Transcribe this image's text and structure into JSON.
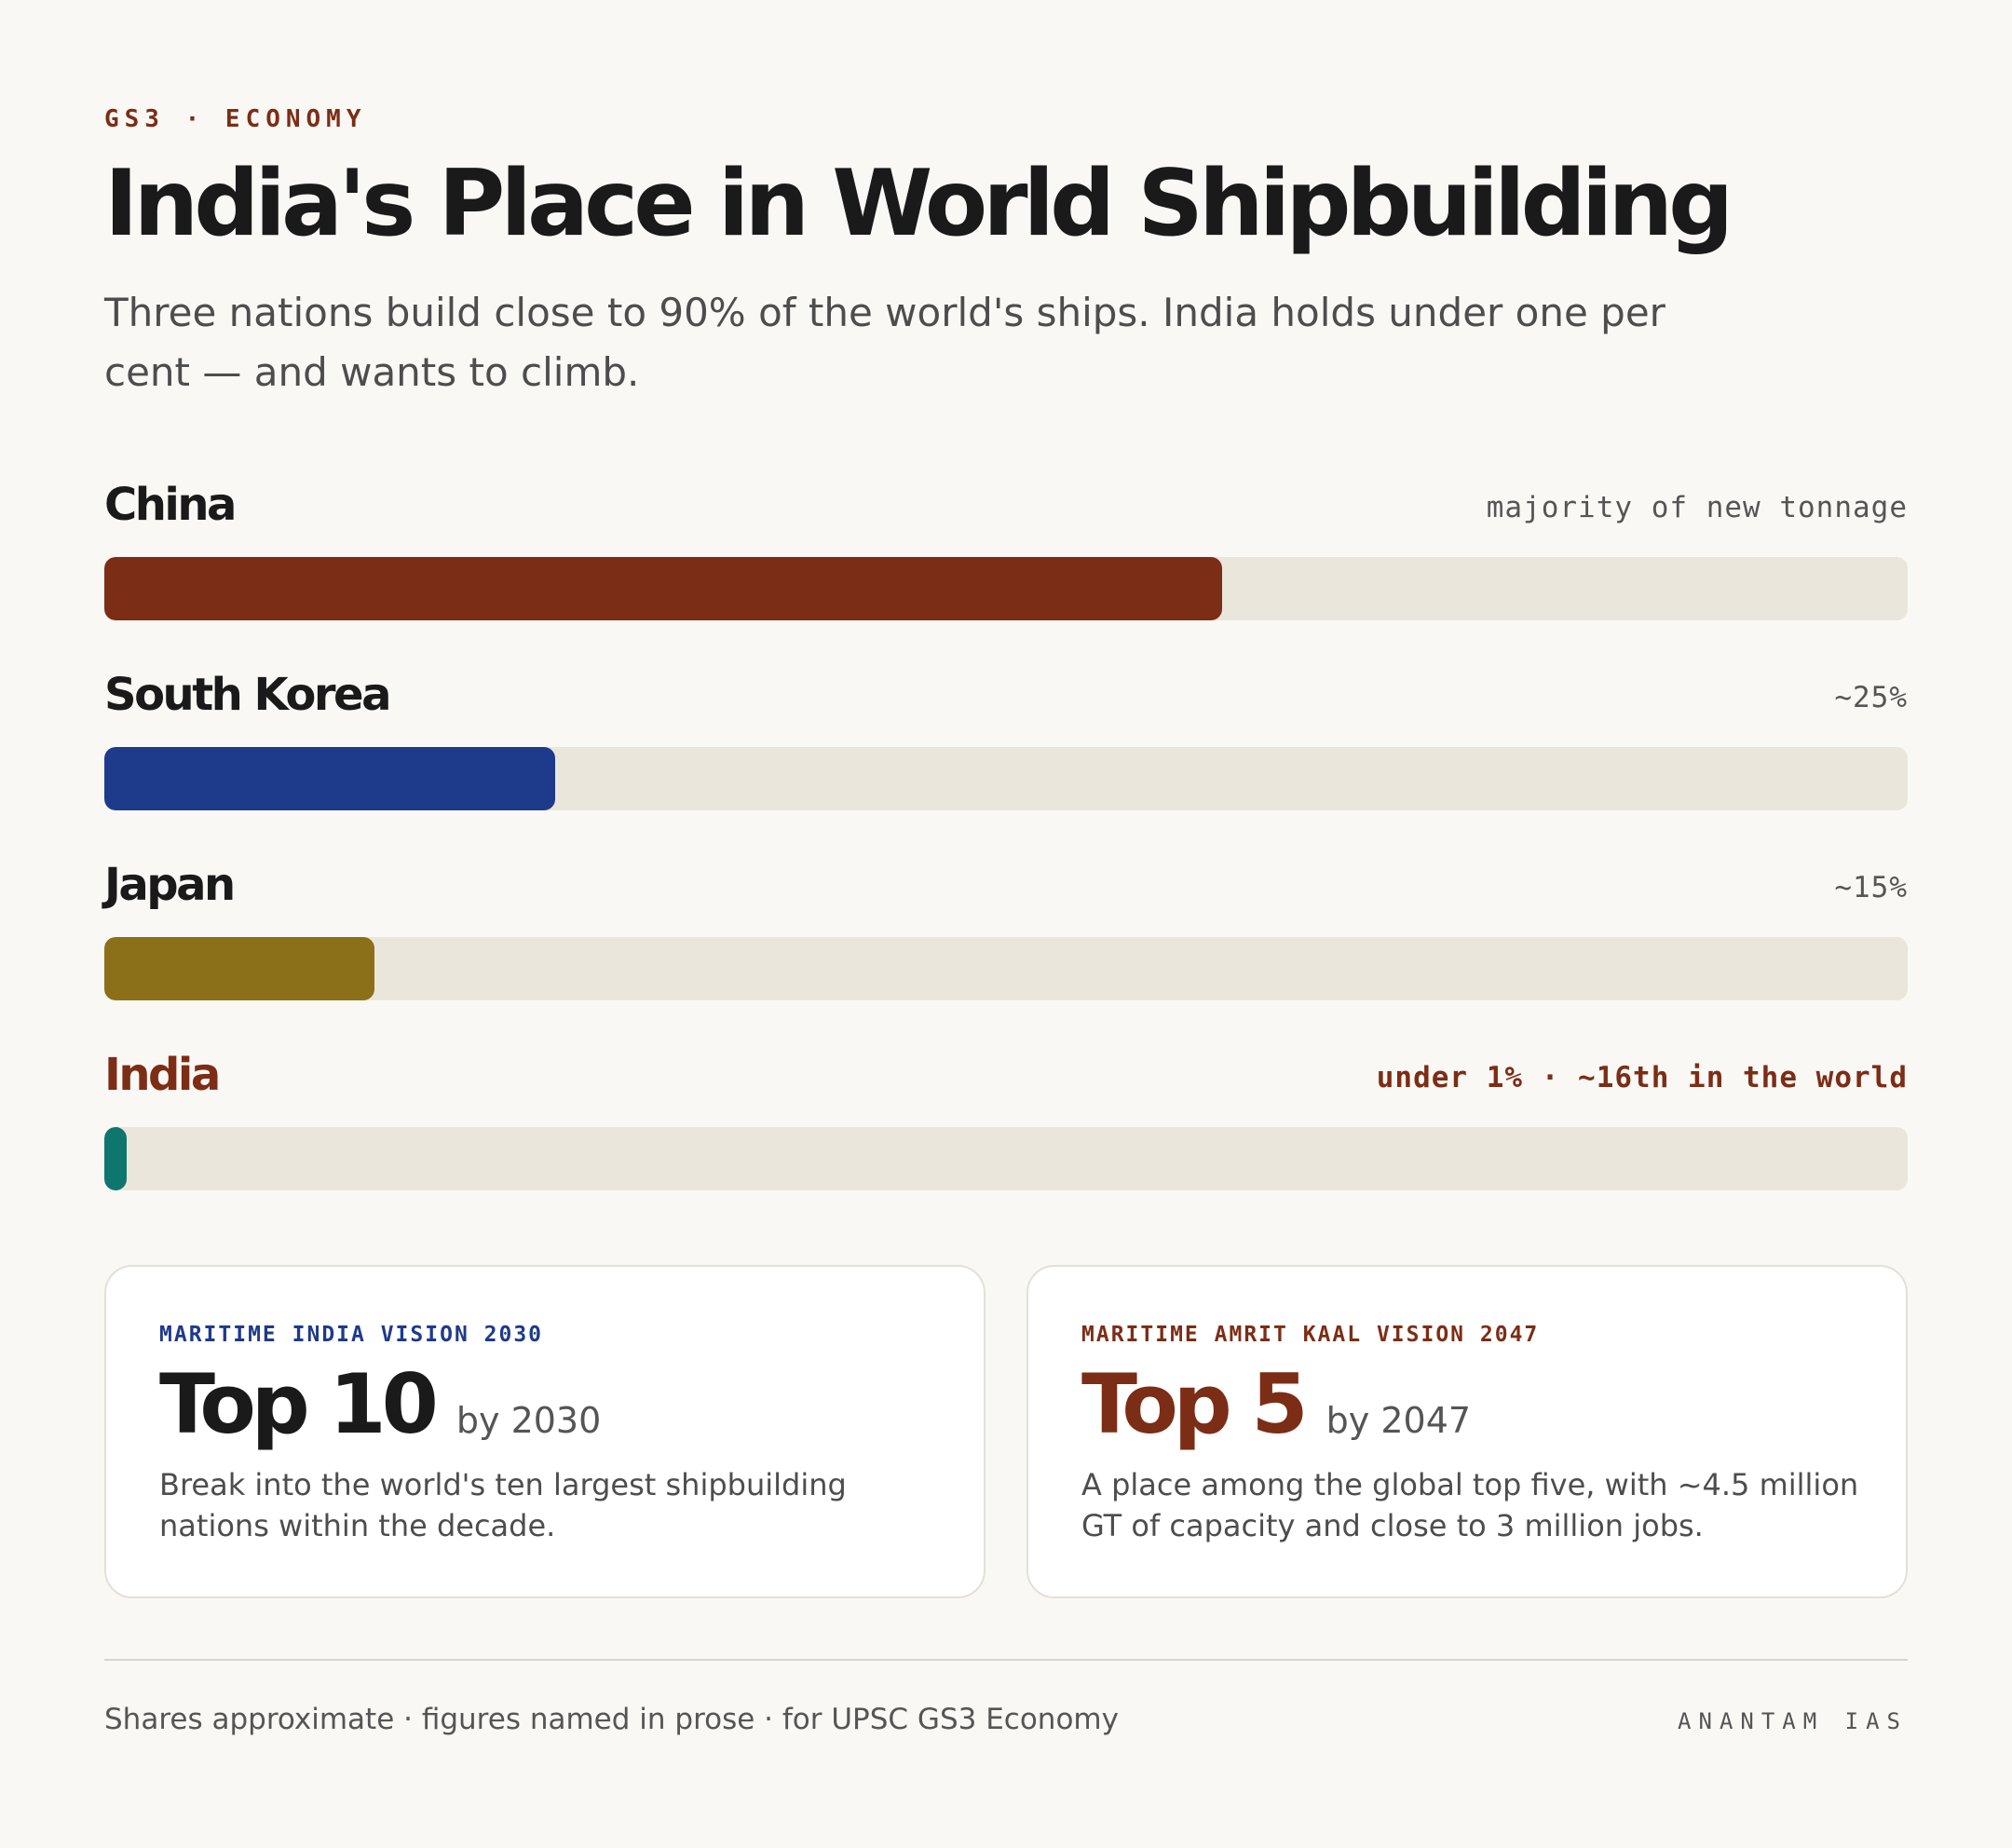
{
  "header": {
    "kicker": "GS3 · ECONOMY",
    "title": "India's Place in World Shipbuilding",
    "subtitle": "Three nations build close to 90% of the world's ships. India holds under one per cent — and wants to climb."
  },
  "chart_data": {
    "type": "bar",
    "orientation": "horizontal",
    "unit": "% share of world shipbuilding (approximate)",
    "xlim": [
      0,
      100
    ],
    "categories": [
      "China",
      "South Korea",
      "Japan",
      "India"
    ],
    "values": [
      62,
      25,
      15,
      1
    ],
    "labels": [
      "majority of new tonnage",
      "~25%",
      "~15%",
      "under 1% · ~16th in the world"
    ],
    "colors": [
      "#7c2d16",
      "#1e3a8a",
      "#8b7019",
      "#0f766e"
    ],
    "highlight": "India",
    "grid": false,
    "legend": "none"
  },
  "cards": [
    {
      "kicker": "MARITIME INDIA VISION 2030",
      "big": "Top 10",
      "by": "by 2030",
      "text": "Break into the world's ten largest shipbuilding nations within the decade."
    },
    {
      "kicker": "MARITIME AMRIT KAAL VISION 2047",
      "big": "Top 5",
      "by": "by 2047",
      "text": "A place among the global top five, with ~4.5 million GT of capacity and close to 3 million jobs."
    }
  ],
  "footer": {
    "note": "Shares approximate · figures named in prose · for UPSC GS3 Economy",
    "brand": "ANANTAM IAS"
  }
}
